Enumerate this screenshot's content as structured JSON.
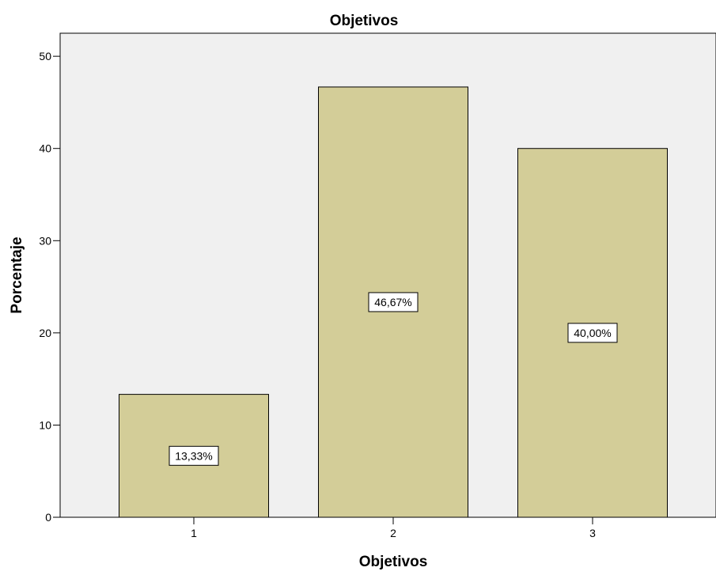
{
  "chart_data": {
    "type": "bar",
    "title": "Objetivos",
    "xlabel": "Objetivos",
    "ylabel": "Porcentaje",
    "categories": [
      "1",
      "2",
      "3"
    ],
    "values": [
      13.33,
      46.67,
      40.0
    ],
    "data_labels": [
      "13,33%",
      "46,67%",
      "40,00%"
    ],
    "ylim": [
      0,
      52.5
    ],
    "yticks": [
      0,
      10,
      20,
      30,
      40,
      50
    ],
    "grid": false,
    "legend": "none",
    "colors": {
      "bar_fill": "#D3CD98",
      "bar_stroke": "#000000",
      "plot_background": "#F0F0F0",
      "label_box_fill": "#FFFFFF"
    }
  }
}
